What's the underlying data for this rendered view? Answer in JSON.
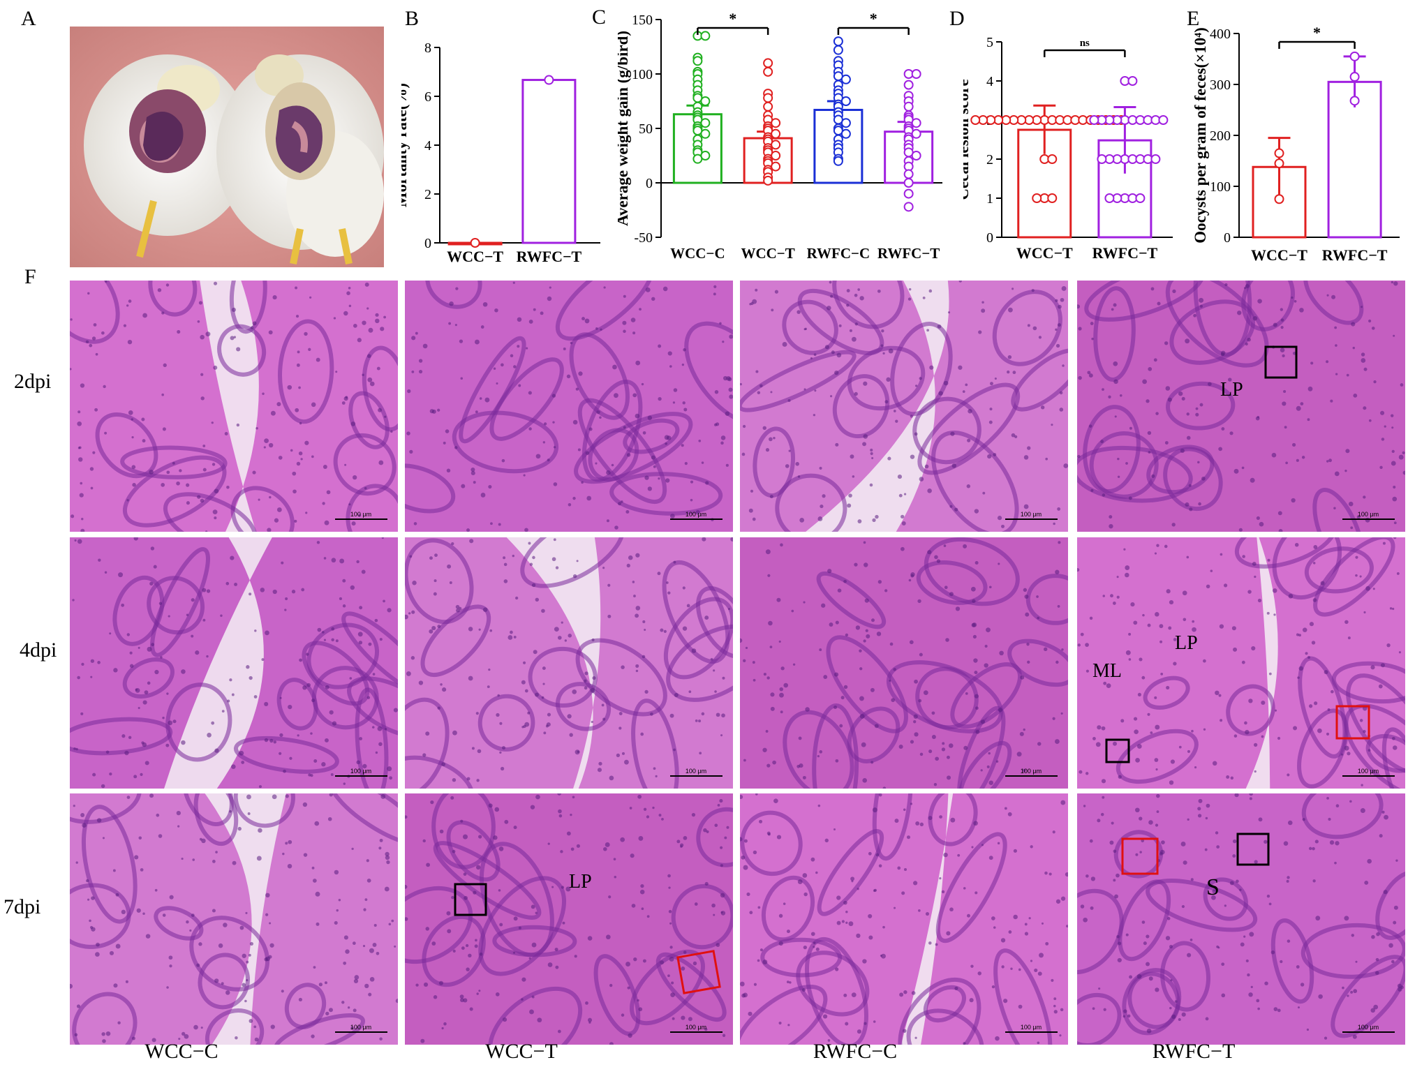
{
  "panels": {
    "A": "A",
    "B": "B",
    "C": "C",
    "D": "D",
    "E": "E",
    "F": "F"
  },
  "colors": {
    "green": "#20b020",
    "red": "#e02020",
    "blue": "#1a2fd6",
    "purple": "#a020e0",
    "tissue": "#c860c8",
    "tissue_dark": "#7a2a9a"
  },
  "chart_data": [
    {
      "panel": "B",
      "type": "bar",
      "categories": [
        "WCC−T",
        "RWFC−T"
      ],
      "values": [
        0,
        6.67
      ],
      "ylabel": "Mortality rate(%)",
      "ylim": [
        0,
        8
      ],
      "yticks": [
        0,
        2,
        4,
        6,
        8
      ],
      "points": [
        [
          0
        ],
        [
          6.67
        ]
      ]
    },
    {
      "panel": "C",
      "type": "bar",
      "categories": [
        "WCC−C",
        "WCC−T",
        "RWFC−C",
        "RWFC−T"
      ],
      "values": [
        63,
        41,
        67,
        47
      ],
      "errors": [
        8,
        6,
        8,
        9
      ],
      "ylabel": "Average weight gain (g/bird)",
      "ylim": [
        -50,
        150
      ],
      "yticks": [
        -50,
        0,
        50,
        100,
        150
      ],
      "significance": [
        {
          "from": 0,
          "to": 1,
          "label": "*"
        },
        {
          "from": 2,
          "to": 3,
          "label": "*"
        }
      ],
      "points": [
        [
          135,
          135,
          115,
          112,
          102,
          100,
          95,
          90,
          85,
          80,
          78,
          75,
          70,
          65,
          62,
          60,
          58,
          55,
          52,
          50,
          48,
          45,
          40,
          35,
          30,
          28,
          25,
          22
        ],
        [
          110,
          102,
          82,
          78,
          70,
          62,
          58,
          55,
          52,
          50,
          48,
          45,
          42,
          40,
          38,
          35,
          32,
          30,
          28,
          25,
          22,
          20,
          18,
          15,
          12,
          10,
          5,
          2
        ],
        [
          130,
          122,
          112,
          108,
          102,
          98,
          95,
          90,
          85,
          82,
          78,
          75,
          72,
          70,
          65,
          62,
          58,
          55,
          50,
          48,
          45,
          40,
          35,
          32,
          28,
          22,
          20
        ],
        [
          100,
          100,
          90,
          80,
          75,
          70,
          62,
          60,
          58,
          55,
          52,
          50,
          48,
          45,
          42,
          40,
          35,
          32,
          28,
          25,
          20,
          15,
          8,
          0,
          -10,
          -22
        ]
      ]
    },
    {
      "panel": "D",
      "type": "bar",
      "categories": [
        "WCC−T",
        "RWFC−T"
      ],
      "values": [
        2.75,
        2.48
      ],
      "errors": [
        0.62,
        0.85
      ],
      "ylabel": "Cecal lesion score",
      "ylim": [
        0,
        5
      ],
      "yticks": [
        0,
        1,
        2,
        3,
        4,
        5
      ],
      "significance": [
        {
          "from": 0,
          "to": 1,
          "label": "ns"
        }
      ],
      "points": [
        [
          3,
          3,
          3,
          3,
          3,
          3,
          3,
          3,
          3,
          3,
          3,
          3,
          3,
          3,
          3,
          3,
          3,
          3,
          3,
          3,
          2,
          2,
          1,
          1,
          1
        ],
        [
          4,
          4,
          3,
          3,
          3,
          3,
          3,
          3,
          3,
          3,
          3,
          3,
          2,
          2,
          2,
          2,
          2,
          2,
          2,
          2,
          1,
          1,
          1,
          1,
          1
        ]
      ]
    },
    {
      "panel": "E",
      "type": "bar",
      "categories": [
        "WCC−T",
        "RWFC−T"
      ],
      "values": [
        138,
        305
      ],
      "errors": [
        57,
        50
      ],
      "ylabel": "Oocysts per gram of feces(×10⁴)",
      "ylim": [
        0,
        400
      ],
      "yticks": [
        0,
        100,
        200,
        300,
        400
      ],
      "significance": [
        {
          "from": 0,
          "to": 1,
          "label": "*"
        }
      ],
      "points": [
        [
          165,
          145,
          75
        ],
        [
          355,
          315,
          268
        ]
      ]
    }
  ],
  "histology": {
    "rows": [
      "2dpi",
      "4dpi",
      "7dpi"
    ],
    "columns": [
      "WCC−C",
      "WCC−T",
      "RWFC−C",
      "RWFC−T"
    ],
    "scale_bar": "100 μm",
    "annotations": {
      "r0c3": [
        "LP"
      ],
      "r1c3": [
        "LP",
        "ML"
      ],
      "r2c1": [
        "LP"
      ],
      "r2c3": [
        "S"
      ]
    }
  }
}
